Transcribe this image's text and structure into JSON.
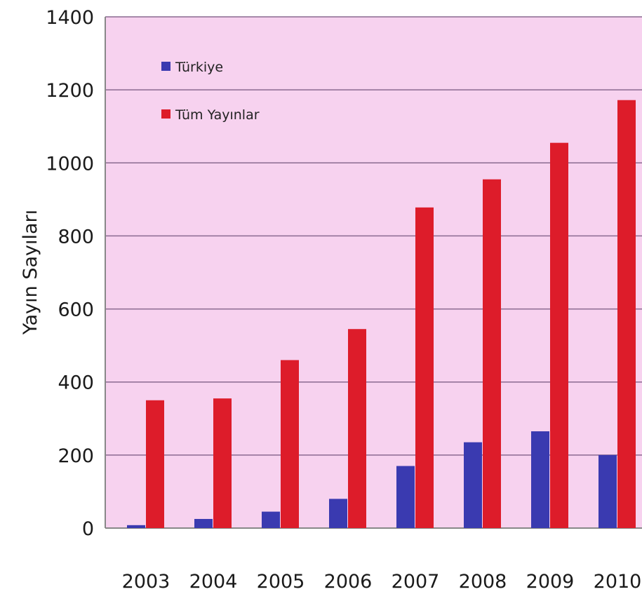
{
  "chart_data": {
    "type": "bar",
    "title": "",
    "xlabel": "",
    "ylabel": "Yayın Sayıları",
    "categories": [
      "2003",
      "2004",
      "2005",
      "2006",
      "2007",
      "2008",
      "2009",
      "2010"
    ],
    "series": [
      {
        "name": "Türkiye",
        "color": "#3a3ab0",
        "values": [
          8,
          25,
          45,
          80,
          170,
          235,
          265,
          200
        ]
      },
      {
        "name": "Tüm Yayınlar",
        "color": "#dd1c2a",
        "values": [
          350,
          355,
          460,
          545,
          878,
          955,
          1055,
          1172
        ]
      }
    ],
    "ylim": [
      0,
      1400
    ],
    "yticks": [
      0,
      200,
      400,
      600,
      800,
      1000,
      1200,
      1400
    ],
    "grid": true,
    "legend_position": "top-left",
    "plot_background": "#f7d2ef"
  }
}
